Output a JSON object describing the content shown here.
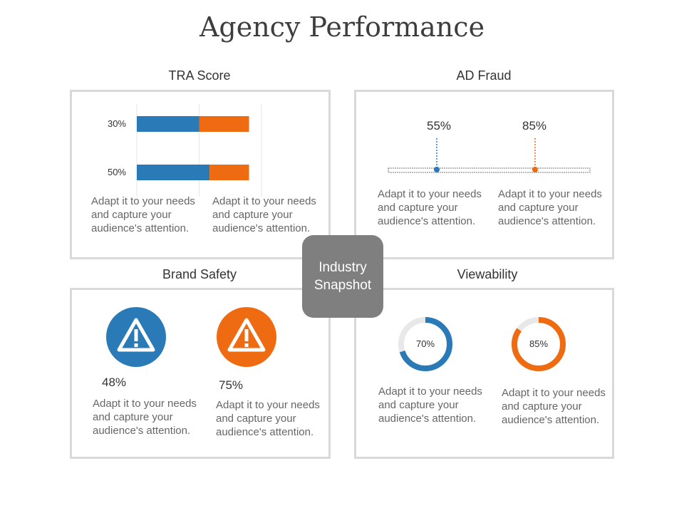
{
  "title": "Agency Performance",
  "center_label": "Industry Snapshot",
  "desc_text": "Adapt it to your needs and capture your audience's attention.",
  "colors": {
    "blue": "#2a7ab8",
    "orange": "#ef6b12",
    "border": "#d9d9d9",
    "center": "#7f7f7f"
  },
  "tra_score": {
    "label": "TRA Score",
    "chart_data": {
      "type": "bar",
      "orientation": "horizontal",
      "stacked": true,
      "categories": [
        "30%",
        "50%"
      ],
      "series": [
        {
          "color": "#2a7ab8",
          "values": [
            30,
            35
          ]
        },
        {
          "color": "#ef6b12",
          "values": [
            24,
            19
          ]
        }
      ],
      "xlim": [
        0,
        60
      ],
      "grid": true
    }
  },
  "ad_fraud": {
    "label": "AD Fraud",
    "markers": [
      {
        "value": 55,
        "label": "55%",
        "color": "#2a7ab8"
      },
      {
        "value": 85,
        "label": "85%",
        "color": "#ef6b12"
      }
    ]
  },
  "brand_safety": {
    "label": "Brand Safety",
    "items": [
      {
        "label": "48%",
        "color": "#2a7ab8",
        "icon": "warning-icon"
      },
      {
        "label": "75%",
        "color": "#ef6b12",
        "icon": "warning-icon"
      }
    ]
  },
  "viewability": {
    "label": "Viewability",
    "chart_data": {
      "type": "pie",
      "donut": true,
      "items": [
        {
          "value": 70,
          "label": "70%",
          "color": "#2a7ab8"
        },
        {
          "value": 85,
          "label": "85%",
          "color": "#ef6b12"
        }
      ]
    }
  }
}
